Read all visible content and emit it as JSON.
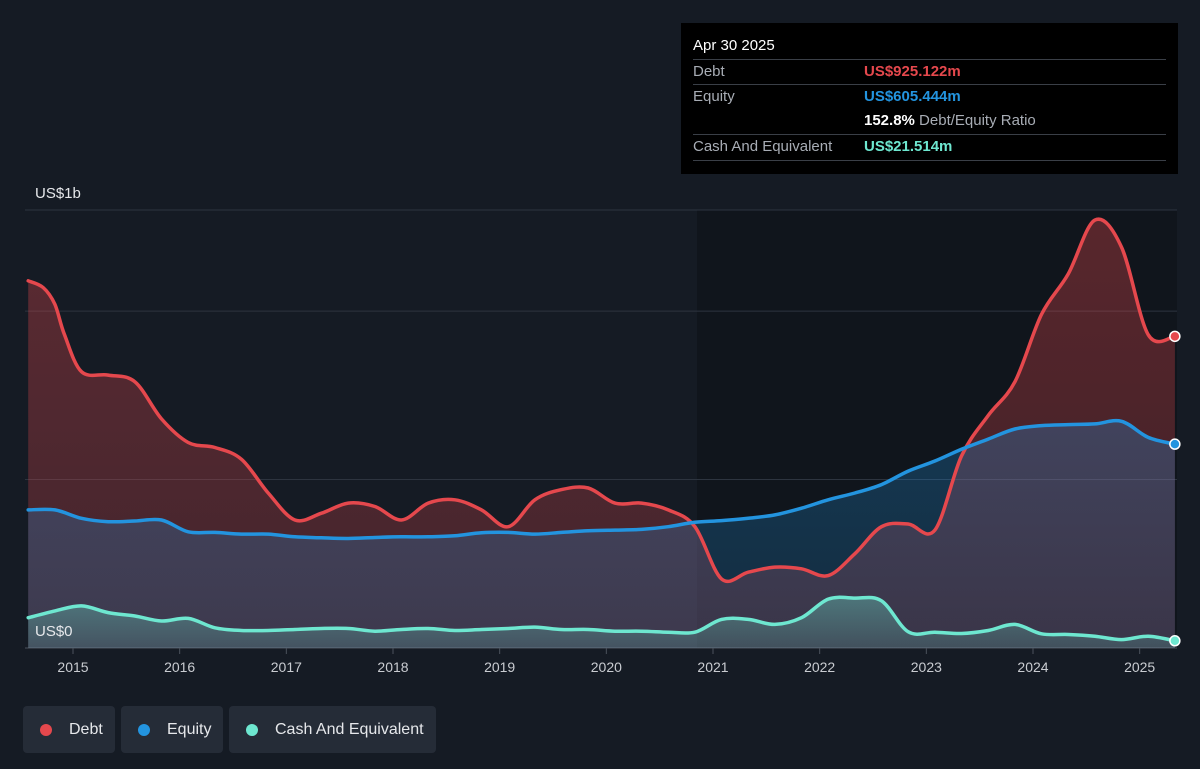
{
  "tooltip": {
    "date": "Apr 30 2025",
    "debt_label": "Debt",
    "debt_value": "US$925.122m",
    "equity_label": "Equity",
    "equity_value": "US$605.444m",
    "ratio_value": "152.8%",
    "ratio_label": "Debt/Equity Ratio",
    "cash_label": "Cash And Equivalent",
    "cash_value": "US$21.514m"
  },
  "legend": [
    {
      "label": "Debt",
      "color": "#e5484d"
    },
    {
      "label": "Equity",
      "color": "#2394df"
    },
    {
      "label": "Cash And Equivalent",
      "color": "#6ee7d0"
    }
  ],
  "chart_data": {
    "type": "area",
    "y_top_label": "US$1b",
    "y_bottom_label": "US$0",
    "ylim": [
      0,
      1300
    ],
    "xlim": [
      2014.55,
      2025.35
    ],
    "x_ticks": [
      "2015",
      "2016",
      "2017",
      "2018",
      "2019",
      "2020",
      "2021",
      "2022",
      "2023",
      "2024",
      "2025"
    ],
    "gridlines": [
      0,
      500,
      1000,
      1300
    ],
    "colors": {
      "debt": "#e5484d",
      "equity": "#2394df",
      "cash": "#6ee7d0"
    },
    "series": [
      {
        "name": "Debt",
        "x": [
          2014.58,
          2014.72,
          2014.83,
          2014.92,
          2015.08,
          2015.33,
          2015.58,
          2015.83,
          2016.08,
          2016.33,
          2016.58,
          2016.83,
          2017.08,
          2017.33,
          2017.58,
          2017.83,
          2018.08,
          2018.33,
          2018.58,
          2018.83,
          2019.08,
          2019.33,
          2019.58,
          2019.83,
          2020.08,
          2020.33,
          2020.58,
          2020.83,
          2021.08,
          2021.33,
          2021.58,
          2021.83,
          2022.08,
          2022.33,
          2022.58,
          2022.83,
          2023.08,
          2023.33,
          2023.58,
          2023.83,
          2024.08,
          2024.33,
          2024.58,
          2024.83,
          2025.08,
          2025.33
        ],
        "values": [
          1090,
          1070,
          1020,
          930,
          820,
          810,
          790,
          680,
          610,
          595,
          560,
          460,
          380,
          400,
          430,
          420,
          380,
          430,
          440,
          410,
          360,
          440,
          470,
          475,
          430,
          430,
          410,
          360,
          205,
          225,
          240,
          235,
          215,
          280,
          360,
          368,
          350,
          570,
          690,
          790,
          990,
          1110,
          1270,
          1190,
          930,
          925
        ]
      },
      {
        "name": "Equity",
        "x": [
          2014.58,
          2014.83,
          2015.08,
          2015.33,
          2015.58,
          2015.83,
          2016.08,
          2016.33,
          2016.58,
          2016.83,
          2017.08,
          2017.33,
          2017.58,
          2017.83,
          2018.08,
          2018.33,
          2018.58,
          2018.83,
          2019.08,
          2019.33,
          2019.58,
          2019.83,
          2020.08,
          2020.33,
          2020.58,
          2020.83,
          2021.08,
          2021.33,
          2021.58,
          2021.83,
          2022.08,
          2022.33,
          2022.58,
          2022.83,
          2023.08,
          2023.33,
          2023.58,
          2023.83,
          2024.08,
          2024.33,
          2024.58,
          2024.83,
          2025.08,
          2025.33
        ],
        "values": [
          410,
          410,
          385,
          375,
          377,
          380,
          345,
          343,
          338,
          338,
          330,
          327,
          325,
          328,
          330,
          330,
          333,
          342,
          343,
          338,
          343,
          348,
          350,
          352,
          360,
          373,
          378,
          385,
          395,
          415,
          440,
          460,
          485,
          525,
          555,
          590,
          620,
          650,
          660,
          663,
          665,
          673,
          625,
          605
        ]
      },
      {
        "name": "Cash And Equivalent",
        "x": [
          2014.58,
          2014.83,
          2015.08,
          2015.33,
          2015.58,
          2015.83,
          2016.08,
          2016.33,
          2016.58,
          2016.83,
          2017.08,
          2017.33,
          2017.58,
          2017.83,
          2018.08,
          2018.33,
          2018.58,
          2018.83,
          2019.08,
          2019.33,
          2019.58,
          2019.83,
          2020.08,
          2020.33,
          2020.58,
          2020.83,
          2021.08,
          2021.33,
          2021.58,
          2021.83,
          2022.08,
          2022.33,
          2022.58,
          2022.83,
          2023.08,
          2023.33,
          2023.58,
          2023.83,
          2024.08,
          2024.33,
          2024.58,
          2024.83,
          2025.08,
          2025.33
        ],
        "values": [
          90,
          110,
          125,
          105,
          95,
          80,
          88,
          60,
          52,
          52,
          55,
          58,
          58,
          50,
          55,
          58,
          52,
          55,
          58,
          62,
          55,
          55,
          50,
          50,
          47,
          47,
          85,
          85,
          70,
          90,
          145,
          148,
          140,
          48,
          47,
          43,
          52,
          70,
          42,
          40,
          35,
          25,
          35,
          21.5
        ]
      }
    ]
  }
}
